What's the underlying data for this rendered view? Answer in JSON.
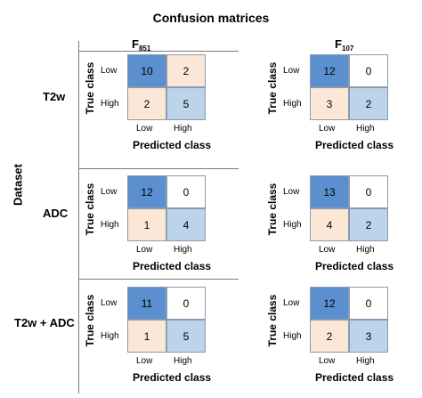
{
  "figure_title": "Confusion matrices",
  "dataset_label": "Dataset",
  "models": [
    {
      "name": "F",
      "sub": "851"
    },
    {
      "name": "F",
      "sub": "107"
    }
  ],
  "datasets": [
    "T2w",
    "ADC",
    "T2w + ADC"
  ],
  "axis": {
    "true_label": "True class",
    "pred_label": "Predicted class",
    "classes": [
      "Low",
      "High"
    ]
  },
  "chart_data": {
    "type": "heatmap",
    "title": "Confusion matrices",
    "row_labels": [
      "Low",
      "High"
    ],
    "col_labels": [
      "Low",
      "High"
    ],
    "xlabel": "Predicted class",
    "ylabel": "True class",
    "matrices": [
      {
        "dataset": "T2w",
        "model": "F851",
        "values": [
          [
            10,
            2
          ],
          [
            2,
            5
          ]
        ]
      },
      {
        "dataset": "T2w",
        "model": "F107",
        "values": [
          [
            12,
            0
          ],
          [
            3,
            2
          ]
        ]
      },
      {
        "dataset": "ADC",
        "model": "F851",
        "values": [
          [
            12,
            0
          ],
          [
            1,
            4
          ]
        ]
      },
      {
        "dataset": "ADC",
        "model": "F107",
        "values": [
          [
            13,
            0
          ],
          [
            4,
            2
          ]
        ]
      },
      {
        "dataset": "T2w + ADC",
        "model": "F851",
        "values": [
          [
            11,
            0
          ],
          [
            1,
            5
          ]
        ]
      },
      {
        "dataset": "T2w + ADC",
        "model": "F107",
        "values": [
          [
            12,
            0
          ],
          [
            2,
            3
          ]
        ]
      }
    ],
    "colors": {
      "correct_strong": "#5b8fcf",
      "correct_light": "#bdd3ea",
      "error_light": "#fbe7d6",
      "zero": "#ffffff"
    }
  }
}
